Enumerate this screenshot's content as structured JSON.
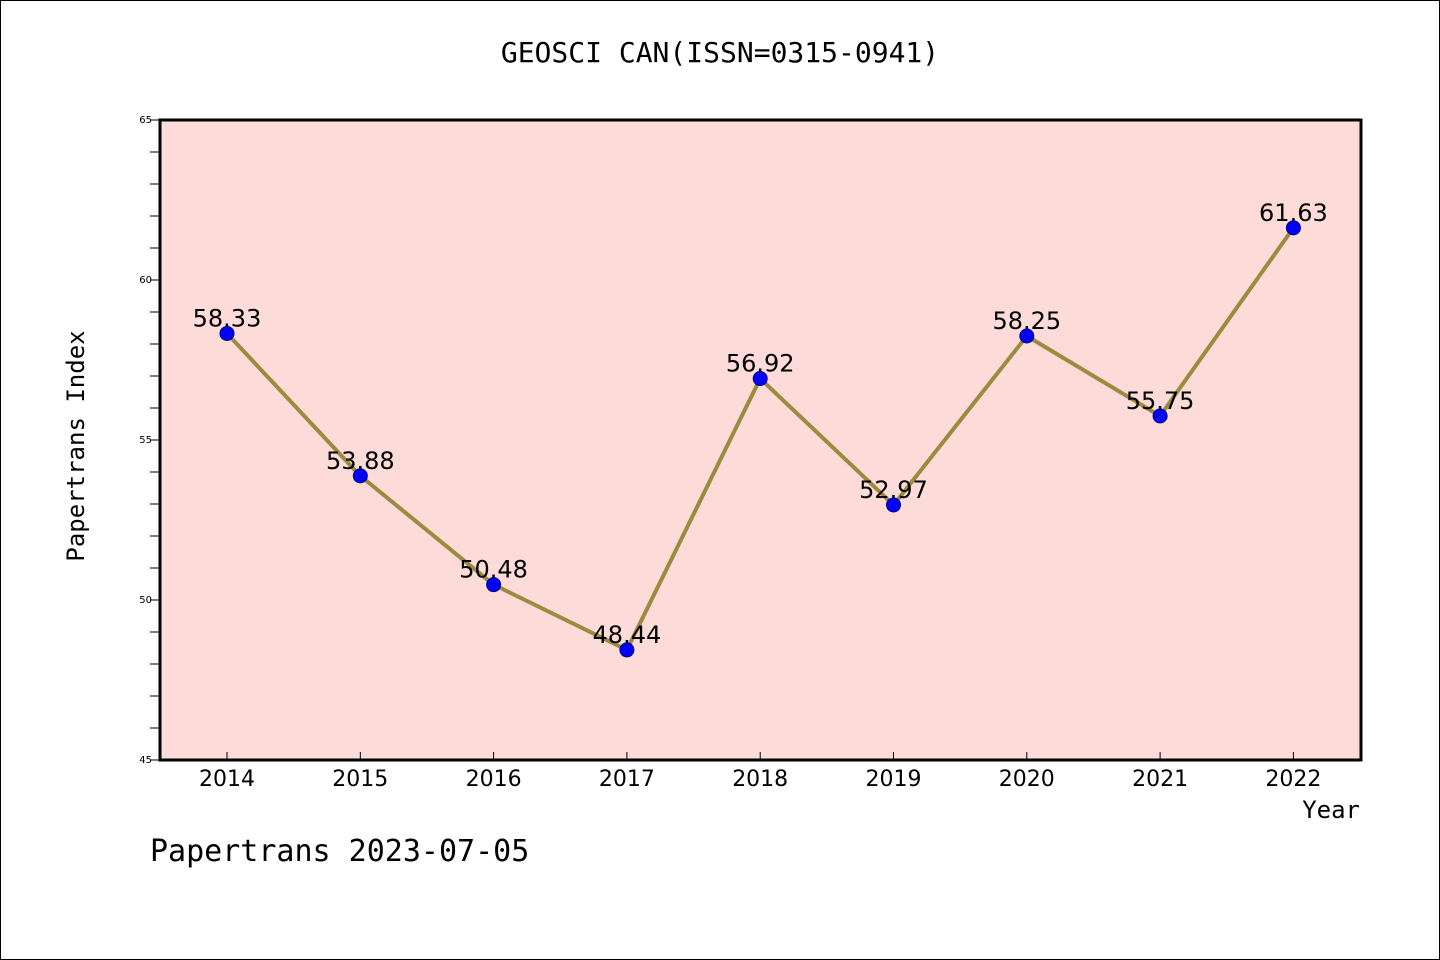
{
  "title": "GEOSCI CAN(ISSN=0315-0941)",
  "footer": "Papertrans 2023-07-05",
  "colors": {
    "plot_bg": "#fddbd8",
    "line": "#9b8b3f",
    "marker": "#0000ff",
    "axis": "#000000"
  },
  "chart_data": {
    "type": "line",
    "title": "GEOSCI CAN(ISSN=0315-0941)",
    "xlabel": "Year",
    "ylabel": "Papertrans Index",
    "categories": [
      "2014",
      "2015",
      "2016",
      "2017",
      "2018",
      "2019",
      "2020",
      "2021",
      "2022"
    ],
    "values": [
      58.33,
      53.88,
      50.48,
      48.44,
      56.92,
      52.97,
      58.25,
      55.75,
      61.63
    ],
    "data_labels": [
      "58.33",
      "53.88",
      "50.48",
      "48.44",
      "56.92",
      "52.97",
      "58.25",
      "55.75",
      "61.63"
    ],
    "ylim": [
      45,
      65
    ],
    "yticks": [
      45,
      50,
      55,
      60,
      65
    ],
    "grid": false,
    "legend": "none"
  }
}
